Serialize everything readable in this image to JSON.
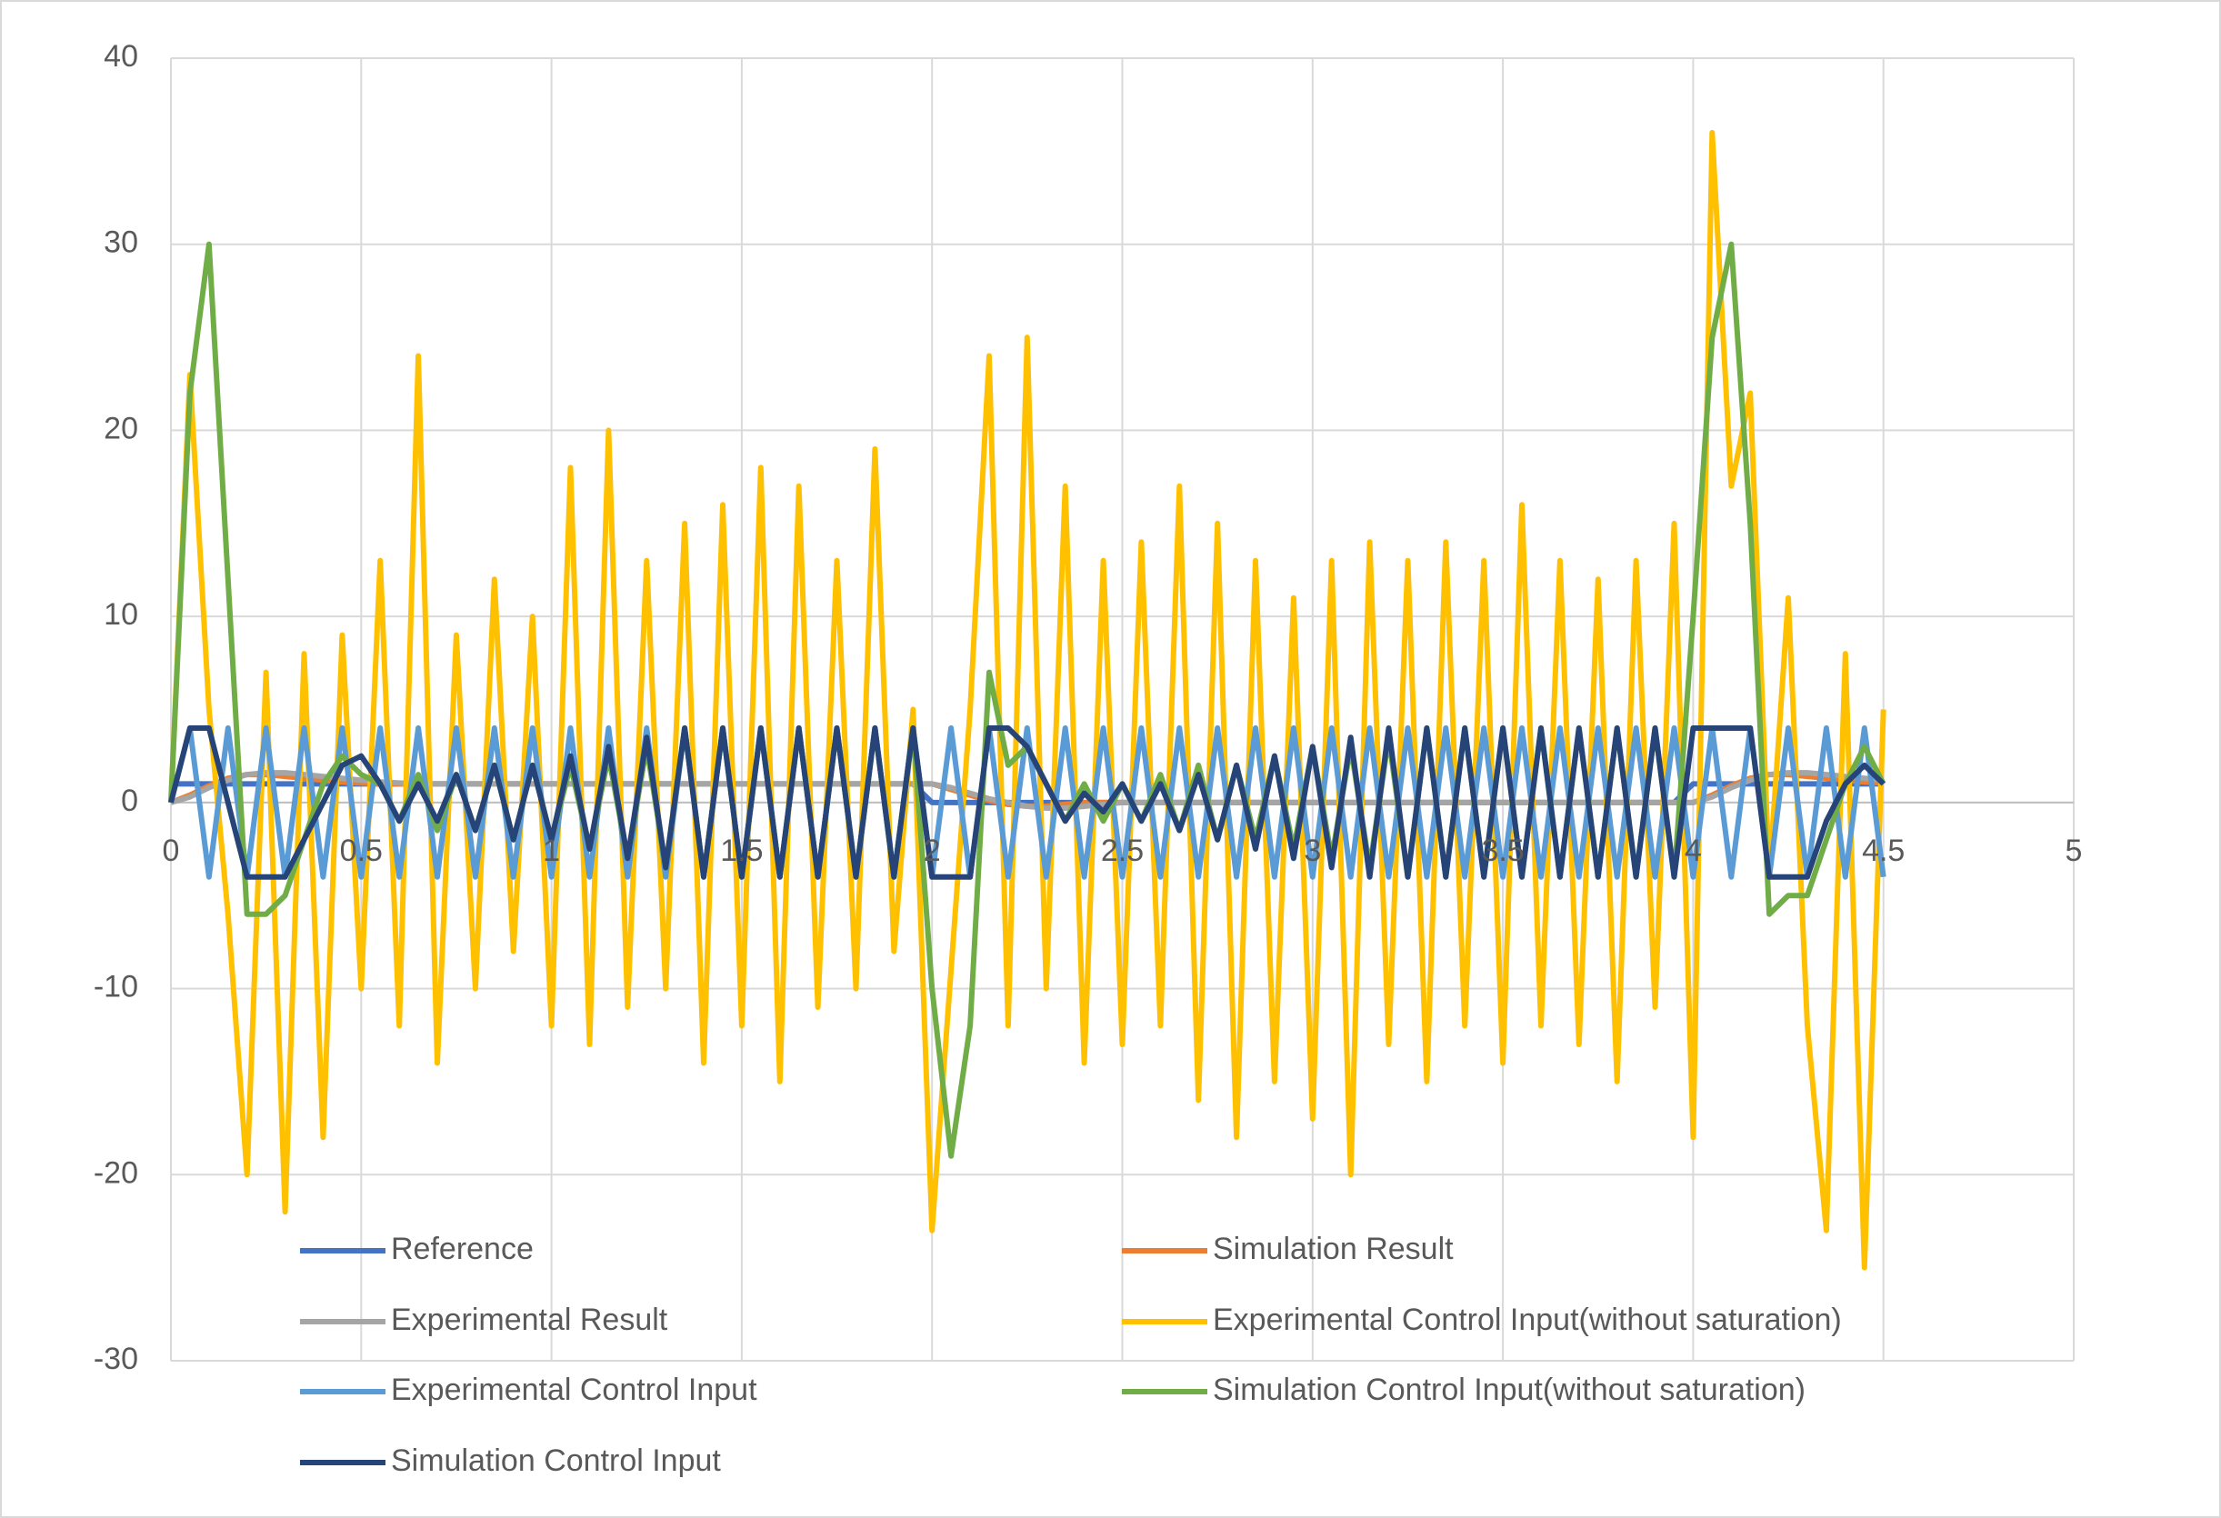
{
  "chart_data": {
    "type": "line",
    "x": [
      0,
      0.05,
      0.1,
      0.15,
      0.2,
      0.25,
      0.3,
      0.35,
      0.4,
      0.45,
      0.5,
      0.55,
      0.6,
      0.65,
      0.7,
      0.75,
      0.8,
      0.85,
      0.9,
      0.95,
      1,
      1.05,
      1.1,
      1.15,
      1.2,
      1.25,
      1.3,
      1.35,
      1.4,
      1.45,
      1.5,
      1.55,
      1.6,
      1.65,
      1.7,
      1.75,
      1.8,
      1.85,
      1.9,
      1.95,
      2,
      2.05,
      2.1,
      2.15,
      2.2,
      2.25,
      2.3,
      2.35,
      2.4,
      2.45,
      2.5,
      2.55,
      2.6,
      2.65,
      2.7,
      2.75,
      2.8,
      2.85,
      2.9,
      2.95,
      3,
      3.05,
      3.1,
      3.15,
      3.2,
      3.25,
      3.3,
      3.35,
      3.4,
      3.45,
      3.5,
      3.55,
      3.6,
      3.65,
      3.7,
      3.75,
      3.8,
      3.85,
      3.9,
      3.95,
      4,
      4.05,
      4.1,
      4.15,
      4.2,
      4.25,
      4.3,
      4.35,
      4.4,
      4.45,
      4.5
    ],
    "series": [
      {
        "name": "Reference",
        "color": "#4472c4",
        "values": [
          1,
          1,
          1,
          1,
          1,
          1,
          1,
          1,
          1,
          1,
          1,
          1,
          1,
          1,
          1,
          1,
          1,
          1,
          1,
          1,
          1,
          1,
          1,
          1,
          1,
          1,
          1,
          1,
          1,
          1,
          1,
          1,
          1,
          1,
          1,
          1,
          1,
          1,
          1,
          1,
          0,
          0,
          0,
          0,
          0,
          0,
          0,
          0,
          0,
          0,
          0,
          0,
          0,
          0,
          0,
          0,
          0,
          0,
          0,
          0,
          0,
          0,
          0,
          0,
          0,
          0,
          0,
          0,
          0,
          0,
          0,
          0,
          0,
          0,
          0,
          0,
          0,
          0,
          0,
          0,
          1,
          1,
          1,
          1,
          1,
          1,
          1,
          1,
          1,
          1,
          1
        ]
      },
      {
        "name": "Simulation Result",
        "color": "#ed7d31",
        "values": [
          0,
          0.4,
          0.9,
          1.3,
          1.5,
          1.5,
          1.4,
          1.3,
          1.2,
          1.1,
          1.05,
          1,
          1,
          1,
          1,
          1,
          1,
          1,
          1,
          1,
          1,
          1,
          1,
          1,
          1,
          1,
          1,
          1,
          1,
          1,
          1,
          1,
          1,
          1,
          1,
          1,
          1,
          1,
          1,
          1,
          1,
          0.7,
          0.4,
          0.1,
          -0.1,
          -0.2,
          -0.2,
          -0.1,
          0,
          0,
          0,
          0,
          0,
          0,
          0,
          0,
          0,
          0,
          0,
          0,
          0,
          0,
          0,
          0,
          0,
          0,
          0,
          0,
          0,
          0,
          0,
          0,
          0,
          0,
          0,
          0,
          0,
          0,
          0,
          0,
          0,
          0.4,
          0.9,
          1.3,
          1.5,
          1.5,
          1.4,
          1.3,
          1.2,
          1.1,
          1.05
        ]
      },
      {
        "name": "Experimental Result",
        "color": "#a5a5a5",
        "values": [
          0,
          0.3,
          0.8,
          1.2,
          1.5,
          1.6,
          1.6,
          1.5,
          1.4,
          1.3,
          1.2,
          1.1,
          1.05,
          1,
          1,
          1,
          1,
          1,
          1,
          1,
          1,
          1,
          1,
          1,
          1,
          1,
          1,
          1,
          1,
          1,
          1,
          1,
          1,
          1,
          1,
          1,
          1,
          1,
          1,
          1,
          1,
          0.8,
          0.5,
          0.2,
          0,
          -0.2,
          -0.3,
          -0.3,
          -0.2,
          -0.1,
          0,
          0,
          0,
          0,
          0,
          0,
          0,
          0,
          0,
          0,
          0,
          0,
          0,
          0,
          0,
          0,
          0,
          0,
          0,
          0,
          0,
          0,
          0,
          0,
          0,
          0,
          0,
          0,
          0,
          0,
          0,
          0.3,
          0.8,
          1.2,
          1.5,
          1.6,
          1.6,
          1.5,
          1.4,
          1.3,
          1.2
        ]
      },
      {
        "name": "Experimental Control Input(without saturation)",
        "color": "#ffc000",
        "values": [
          0,
          23,
          5,
          -6,
          -20,
          7,
          -22,
          8,
          -18,
          9,
          -10,
          13,
          -12,
          24,
          -14,
          9,
          -10,
          12,
          -8,
          10,
          -12,
          18,
          -13,
          20,
          -11,
          13,
          -10,
          15,
          -14,
          16,
          -12,
          18,
          -15,
          17,
          -11,
          13,
          -10,
          19,
          -8,
          5,
          -23,
          -9,
          5,
          24,
          -12,
          25,
          -10,
          17,
          -14,
          13,
          -13,
          14,
          -12,
          17,
          -16,
          15,
          -18,
          13,
          -15,
          11,
          -17,
          13,
          -20,
          14,
          -13,
          13,
          -15,
          14,
          -12,
          13,
          -14,
          16,
          -12,
          13,
          -13,
          12,
          -15,
          13,
          -11,
          15,
          -18,
          36,
          17,
          22,
          -4,
          11,
          -12,
          -23,
          8,
          -25,
          5
        ]
      },
      {
        "name": "Experimental Control Input",
        "color": "#5b9bd5",
        "values": [
          0,
          4,
          -4,
          4,
          -4,
          4,
          -4,
          4,
          -4,
          4,
          -4,
          4,
          -4,
          4,
          -4,
          4,
          -4,
          4,
          -4,
          4,
          -4,
          4,
          -4,
          4,
          -4,
          4,
          -4,
          4,
          -4,
          4,
          -4,
          4,
          -4,
          4,
          -4,
          4,
          -4,
          4,
          -4,
          4,
          -4,
          4,
          -4,
          4,
          -4,
          4,
          -4,
          4,
          -4,
          4,
          -4,
          4,
          -4,
          4,
          -4,
          4,
          -4,
          4,
          -4,
          4,
          -4,
          4,
          -4,
          4,
          -4,
          4,
          -4,
          4,
          -4,
          4,
          -4,
          4,
          -4,
          4,
          -4,
          4,
          -4,
          4,
          -4,
          4,
          -4,
          4,
          -4,
          4,
          -4,
          4,
          -4,
          4,
          -4,
          4,
          -4
        ]
      },
      {
        "name": "Simulation Control Input(without saturation)",
        "color": "#70ad47",
        "values": [
          0,
          22,
          30,
          12,
          -6,
          -6,
          -5,
          -2,
          1,
          2.5,
          1.5,
          1,
          -1,
          1.5,
          -1.5,
          1.5,
          -1.5,
          2,
          -2,
          2,
          -2,
          2,
          -2.5,
          2.5,
          -3,
          3,
          -3.5,
          4,
          -4,
          4,
          -4,
          4,
          -4,
          4,
          -4,
          4,
          -4,
          4,
          -4,
          4,
          -10,
          -19,
          -12,
          7,
          2,
          3,
          1,
          -1,
          1,
          -1,
          1,
          -1,
          1.5,
          -1.5,
          2,
          -2,
          2,
          -2,
          2.5,
          -2.5,
          3,
          -3,
          3,
          -3.5,
          3.5,
          -4,
          4,
          -4,
          4,
          -4,
          4,
          -4,
          4,
          -4,
          4,
          -4,
          4,
          -4,
          4,
          -4,
          10,
          25,
          30,
          15,
          -6,
          -5,
          -5,
          -2,
          1,
          3,
          1
        ]
      },
      {
        "name": "Simulation Control Input",
        "color": "#264478",
        "values": [
          0,
          4,
          4,
          0,
          -4,
          -4,
          -4,
          -2,
          0,
          2,
          2.5,
          1,
          -1,
          1,
          -1,
          1.5,
          -1.5,
          2,
          -2,
          2,
          -2,
          2.5,
          -2.5,
          3,
          -3,
          3.5,
          -3.5,
          4,
          -4,
          4,
          -4,
          4,
          -4,
          4,
          -4,
          4,
          -4,
          4,
          -4,
          4,
          -4,
          -4,
          -4,
          4,
          4,
          3,
          1,
          -1,
          0.5,
          -0.5,
          1,
          -1,
          1,
          -1.5,
          1.5,
          -2,
          2,
          -2.5,
          2.5,
          -3,
          3,
          -3.5,
          3.5,
          -4,
          4,
          -4,
          4,
          -4,
          4,
          -4,
          4,
          -4,
          4,
          -4,
          4,
          -4,
          4,
          -4,
          4,
          -4,
          4,
          4,
          4,
          4,
          -4,
          -4,
          -4,
          -1,
          1,
          2,
          1
        ]
      }
    ],
    "xlim": [
      0,
      5
    ],
    "xticks": [
      0,
      0.5,
      1,
      1.5,
      2,
      2.5,
      3,
      3.5,
      4,
      4.5,
      5
    ],
    "ylim": [
      -30,
      40
    ],
    "yticks": [
      -30,
      -20,
      -10,
      0,
      10,
      20,
      30,
      40
    ],
    "grid": true,
    "legend": "bottom"
  }
}
